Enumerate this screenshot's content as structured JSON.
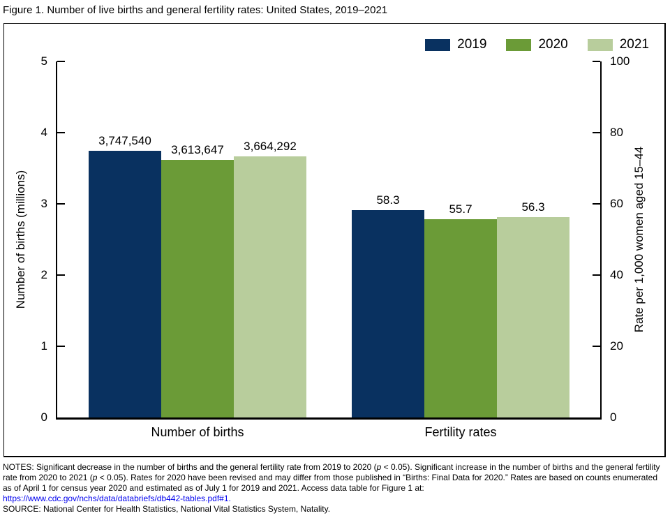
{
  "title": "Figure 1. Number of live births and general fertility rates: United States, 2019–2021",
  "chart_data": {
    "type": "bar",
    "title": "Number of live births and general fertility rates: United States, 2019–2021",
    "grid": false,
    "legend_position": "top-right",
    "categories": [
      {
        "label": "Number of births",
        "key": "births",
        "axis": "left"
      },
      {
        "label": "Fertility rates",
        "key": "rates",
        "axis": "right"
      }
    ],
    "series": [
      {
        "name": "2019",
        "color": "#093160",
        "values": [
          3747540,
          58.3
        ],
        "labels": [
          "3,747,540",
          "58.3"
        ]
      },
      {
        "name": "2020",
        "color": "#6b9b37",
        "values": [
          3613647,
          55.7
        ],
        "labels": [
          "3,613,647",
          "55.7"
        ]
      },
      {
        "name": "2021",
        "color": "#b8cd9c",
        "values": [
          3664292,
          56.3
        ],
        "labels": [
          "3,664,292",
          "56.3"
        ]
      }
    ],
    "left_axis": {
      "label": "Number of births (millions)",
      "ticks": [
        0,
        1,
        2,
        3,
        4,
        5
      ],
      "max": 5,
      "max_value": 5000000
    },
    "right_axis": {
      "label": "Rate per 1,000 women aged 15–44",
      "ticks": [
        0,
        20,
        40,
        60,
        80,
        100
      ],
      "max": 100
    }
  },
  "colors": {
    "link": "#0000ee"
  },
  "notes": {
    "segments": [
      {
        "text": "NOTES: Significant decrease in the number of births and the general fertility rate from 2019 to 2020 (",
        "style": "normal"
      },
      {
        "text": "p",
        "style": "italic"
      },
      {
        "text": " < 0.05). Significant increase in the number of births and the general fertility rate from 2020 to 2021 (",
        "style": "normal"
      },
      {
        "text": "p",
        "style": "italic"
      },
      {
        "text": " < 0.05). Rates for 2020 have been revised and may differ from those published in “Births: Final Data for 2020.” Rates are based on counts enumerated as of April 1 for census year 2020 and estimated as of July 1 for 2019 and 2021. Access data table for Figure 1 at: ",
        "style": "normal"
      },
      {
        "text": "https://www.cdc.gov/nchs/data/databriefs/db442-tables.pdf#1.",
        "style": "link"
      }
    ],
    "source": "SOURCE: National Center for Health Statistics, National Vital Statistics System, Natality."
  }
}
